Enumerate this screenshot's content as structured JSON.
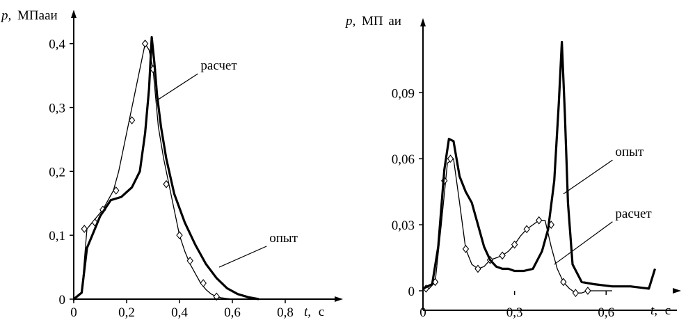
{
  "chart_data": [
    {
      "type": "line",
      "xlabel_var": "t,",
      "xlabel_unit": "с",
      "ylabel_var": "p,",
      "ylabel_unit": "МПа",
      "ylabel_extra": "аи",
      "xlim": [
        0,
        0.95
      ],
      "ylim": [
        0,
        0.44
      ],
      "xticks": [
        0,
        0.2,
        0.4,
        0.6,
        0.8
      ],
      "xtick_labels": [
        "0",
        "0,2",
        "0,4",
        "0,6",
        "0,8"
      ],
      "yticks": [
        0,
        0.1,
        0.2,
        0.3,
        0.4
      ],
      "ytick_labels": [
        "0",
        "0,1",
        "0,2",
        "0,3",
        "0,4"
      ],
      "annotations": [
        {
          "text": "расчет",
          "series": "calc",
          "at": [
            0.31,
            0.31
          ],
          "label_at": [
            0.48,
            0.355
          ]
        },
        {
          "text": "опыт",
          "series": "exp",
          "at": [
            0.55,
            0.05
          ],
          "label_at": [
            0.74,
            0.085
          ]
        }
      ],
      "series": [
        {
          "key": "calc",
          "markers": "diamond",
          "x": [
            0.0,
            0.03,
            0.05,
            0.07,
            0.09,
            0.11,
            0.13,
            0.15,
            0.17,
            0.19,
            0.21,
            0.23,
            0.25,
            0.27,
            0.285,
            0.3,
            0.32,
            0.34,
            0.36,
            0.38,
            0.4,
            0.42,
            0.44,
            0.46,
            0.48,
            0.5,
            0.52,
            0.54,
            0.56,
            0.58,
            0.6
          ],
          "y": [
            0.0,
            0.01,
            0.11,
            0.12,
            0.13,
            0.14,
            0.155,
            0.17,
            0.2,
            0.24,
            0.28,
            0.32,
            0.36,
            0.4,
            0.39,
            0.36,
            0.27,
            0.22,
            0.18,
            0.14,
            0.1,
            0.075,
            0.055,
            0.04,
            0.025,
            0.015,
            0.008,
            0.004,
            0.002,
            0.001,
            0.0
          ],
          "marker_x": [
            0.04,
            0.08,
            0.11,
            0.16,
            0.22,
            0.27,
            0.3,
            0.35,
            0.4,
            0.44,
            0.49,
            0.54
          ],
          "marker_y": [
            0.11,
            0.12,
            0.14,
            0.17,
            0.28,
            0.4,
            0.36,
            0.18,
            0.1,
            0.06,
            0.025,
            0.004
          ]
        },
        {
          "key": "exp",
          "markers": "none",
          "x": [
            0.0,
            0.03,
            0.05,
            0.07,
            0.1,
            0.14,
            0.18,
            0.22,
            0.25,
            0.27,
            0.285,
            0.295,
            0.305,
            0.315,
            0.33,
            0.35,
            0.38,
            0.42,
            0.46,
            0.5,
            0.54,
            0.58,
            0.62,
            0.66,
            0.7
          ],
          "y": [
            0.0,
            0.01,
            0.08,
            0.1,
            0.13,
            0.155,
            0.16,
            0.175,
            0.2,
            0.26,
            0.33,
            0.41,
            0.37,
            0.32,
            0.27,
            0.22,
            0.165,
            0.12,
            0.085,
            0.055,
            0.033,
            0.017,
            0.008,
            0.003,
            0.0
          ]
        }
      ]
    },
    {
      "type": "line",
      "xlabel_var": "t,",
      "xlabel_unit": "с",
      "ylabel_var": "p,",
      "ylabel_unit": "МП",
      "ylabel_extra": "аи",
      "xlim": [
        0,
        0.8
      ],
      "ylim": [
        -0.006,
        0.122
      ],
      "xticks": [
        0,
        0.3,
        0.6
      ],
      "xtick_labels": [
        "0",
        "0,3",
        "0,6"
      ],
      "yticks": [
        0,
        0.03,
        0.06,
        0.09
      ],
      "ytick_labels": [
        "0",
        "0,03",
        "0,06",
        "0,09"
      ],
      "annotations": [
        {
          "text": "опыт",
          "series": "exp",
          "at": [
            0.46,
            0.044
          ],
          "label_at": [
            0.63,
            0.06
          ]
        },
        {
          "text": "расчет",
          "series": "calc",
          "at": [
            0.43,
            0.012
          ],
          "label_at": [
            0.63,
            0.032
          ]
        }
      ],
      "series": [
        {
          "key": "calc",
          "markers": "diamond",
          "x": [
            0.0,
            0.02,
            0.04,
            0.06,
            0.08,
            0.1,
            0.12,
            0.14,
            0.16,
            0.18,
            0.2,
            0.22,
            0.24,
            0.26,
            0.28,
            0.3,
            0.32,
            0.34,
            0.36,
            0.38,
            0.4,
            0.42,
            0.44,
            0.46,
            0.48,
            0.5,
            0.52,
            0.54,
            0.58,
            0.62
          ],
          "y": [
            0.001,
            0.001,
            0.004,
            0.03,
            0.058,
            0.06,
            0.04,
            0.019,
            0.012,
            0.01,
            0.011,
            0.014,
            0.015,
            0.016,
            0.018,
            0.021,
            0.025,
            0.028,
            0.03,
            0.032,
            0.032,
            0.02,
            0.01,
            0.004,
            0.001,
            -0.001,
            -0.001,
            0.0,
            0.0,
            0.0
          ],
          "marker_x": [
            0.01,
            0.04,
            0.07,
            0.09,
            0.14,
            0.18,
            0.22,
            0.26,
            0.3,
            0.34,
            0.38,
            0.42,
            0.46,
            0.5,
            0.54
          ],
          "marker_y": [
            0.001,
            0.004,
            0.05,
            0.06,
            0.019,
            0.01,
            0.014,
            0.016,
            0.021,
            0.028,
            0.032,
            0.03,
            0.004,
            -0.001,
            0.0
          ]
        },
        {
          "key": "exp",
          "markers": "none",
          "x": [
            0.0,
            0.03,
            0.05,
            0.07,
            0.085,
            0.1,
            0.12,
            0.14,
            0.16,
            0.18,
            0.2,
            0.22,
            0.24,
            0.26,
            0.28,
            0.3,
            0.33,
            0.36,
            0.39,
            0.41,
            0.43,
            0.445,
            0.455,
            0.465,
            0.475,
            0.49,
            0.52,
            0.56,
            0.62,
            0.68,
            0.74,
            0.76
          ],
          "y": [
            0.001,
            0.003,
            0.02,
            0.055,
            0.069,
            0.068,
            0.052,
            0.045,
            0.04,
            0.03,
            0.02,
            0.014,
            0.011,
            0.01,
            0.01,
            0.009,
            0.009,
            0.01,
            0.018,
            0.028,
            0.05,
            0.085,
            0.113,
            0.08,
            0.04,
            0.012,
            0.004,
            0.003,
            0.002,
            0.002,
            0.001,
            0.01
          ]
        }
      ]
    }
  ]
}
